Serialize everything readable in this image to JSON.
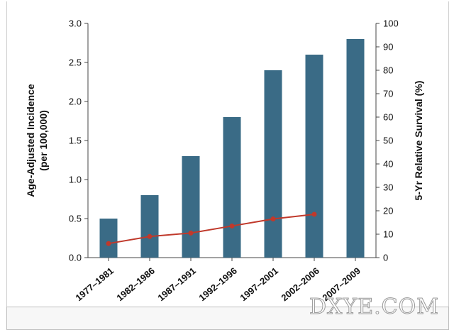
{
  "chart_data": {
    "type": "bar",
    "categories": [
      "1977–1981",
      "1982–1986",
      "1987–1991",
      "1992–1996",
      "1997–2001",
      "2002–2006",
      "2007–2009"
    ],
    "series": [
      {
        "type": "bar",
        "axis": "left",
        "values": [
          0.5,
          0.8,
          1.3,
          1.8,
          2.4,
          2.6,
          2.8
        ],
        "color": "#3a6b86"
      },
      {
        "type": "line",
        "axis": "right",
        "values": [
          6,
          9,
          10.5,
          13.5,
          16.5,
          18.5,
          null
        ],
        "color": "#c0392b"
      }
    ],
    "ylabel": "Age-Adjusted Incidence\n(per 100,000)",
    "y2label": "5-Yr Relative Survival (%)",
    "ylim": [
      0,
      3.0
    ],
    "y2lim": [
      0,
      100
    ],
    "yticks": [
      "0.0",
      "0.5",
      "1.0",
      "1.5",
      "2.0",
      "2.5",
      "3.0"
    ],
    "y2ticks": [
      "0",
      "10",
      "20",
      "30",
      "40",
      "50",
      "60",
      "70",
      "80",
      "90",
      "100"
    ],
    "grid": false,
    "legend": "none"
  },
  "watermark": "DXYE.COM"
}
